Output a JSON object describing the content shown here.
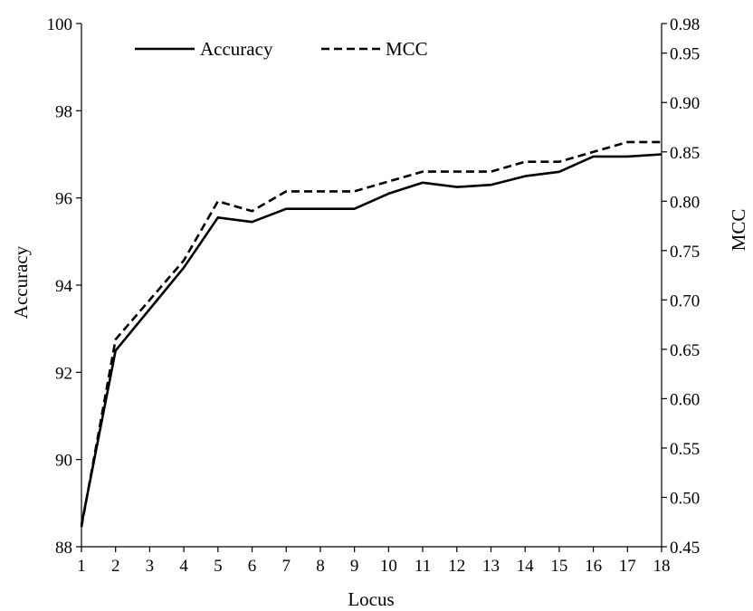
{
  "chart_data": {
    "type": "line",
    "title": "",
    "xlabel": "Locus",
    "ylabel_left": "Accuracy",
    "ylabel_right": "MCC",
    "x": [
      1,
      2,
      3,
      4,
      5,
      6,
      7,
      8,
      9,
      10,
      11,
      12,
      13,
      14,
      15,
      16,
      17,
      18
    ],
    "xlim": [
      1,
      18
    ],
    "ylim_left": [
      88,
      100
    ],
    "ylim_right": [
      0.45,
      0.98
    ],
    "yticks_left": [
      "88",
      "90",
      "92",
      "94",
      "96",
      "98",
      "100"
    ],
    "yticks_right": [
      "0.45",
      "0.50",
      "0.55",
      "0.60",
      "0.65",
      "0.70",
      "0.75",
      "0.80",
      "0.85",
      "0.90",
      "0.95",
      "0.98"
    ],
    "grid": false,
    "legend_position": "top",
    "series": [
      {
        "name": "Accuracy",
        "axis": "left",
        "style": "solid",
        "color": "#000000",
        "values": [
          88.5,
          92.5,
          93.45,
          94.4,
          95.55,
          95.45,
          95.75,
          95.75,
          95.75,
          96.1,
          96.35,
          96.25,
          96.3,
          96.5,
          96.6,
          96.95,
          96.95,
          97.0
        ]
      },
      {
        "name": "MCC",
        "axis": "right",
        "style": "dashed",
        "color": "#000000",
        "values": [
          0.47,
          0.66,
          0.7,
          0.74,
          0.8,
          0.79,
          0.81,
          0.81,
          0.81,
          0.82,
          0.83,
          0.83,
          0.83,
          0.84,
          0.84,
          0.85,
          0.86,
          0.86
        ]
      }
    ]
  }
}
